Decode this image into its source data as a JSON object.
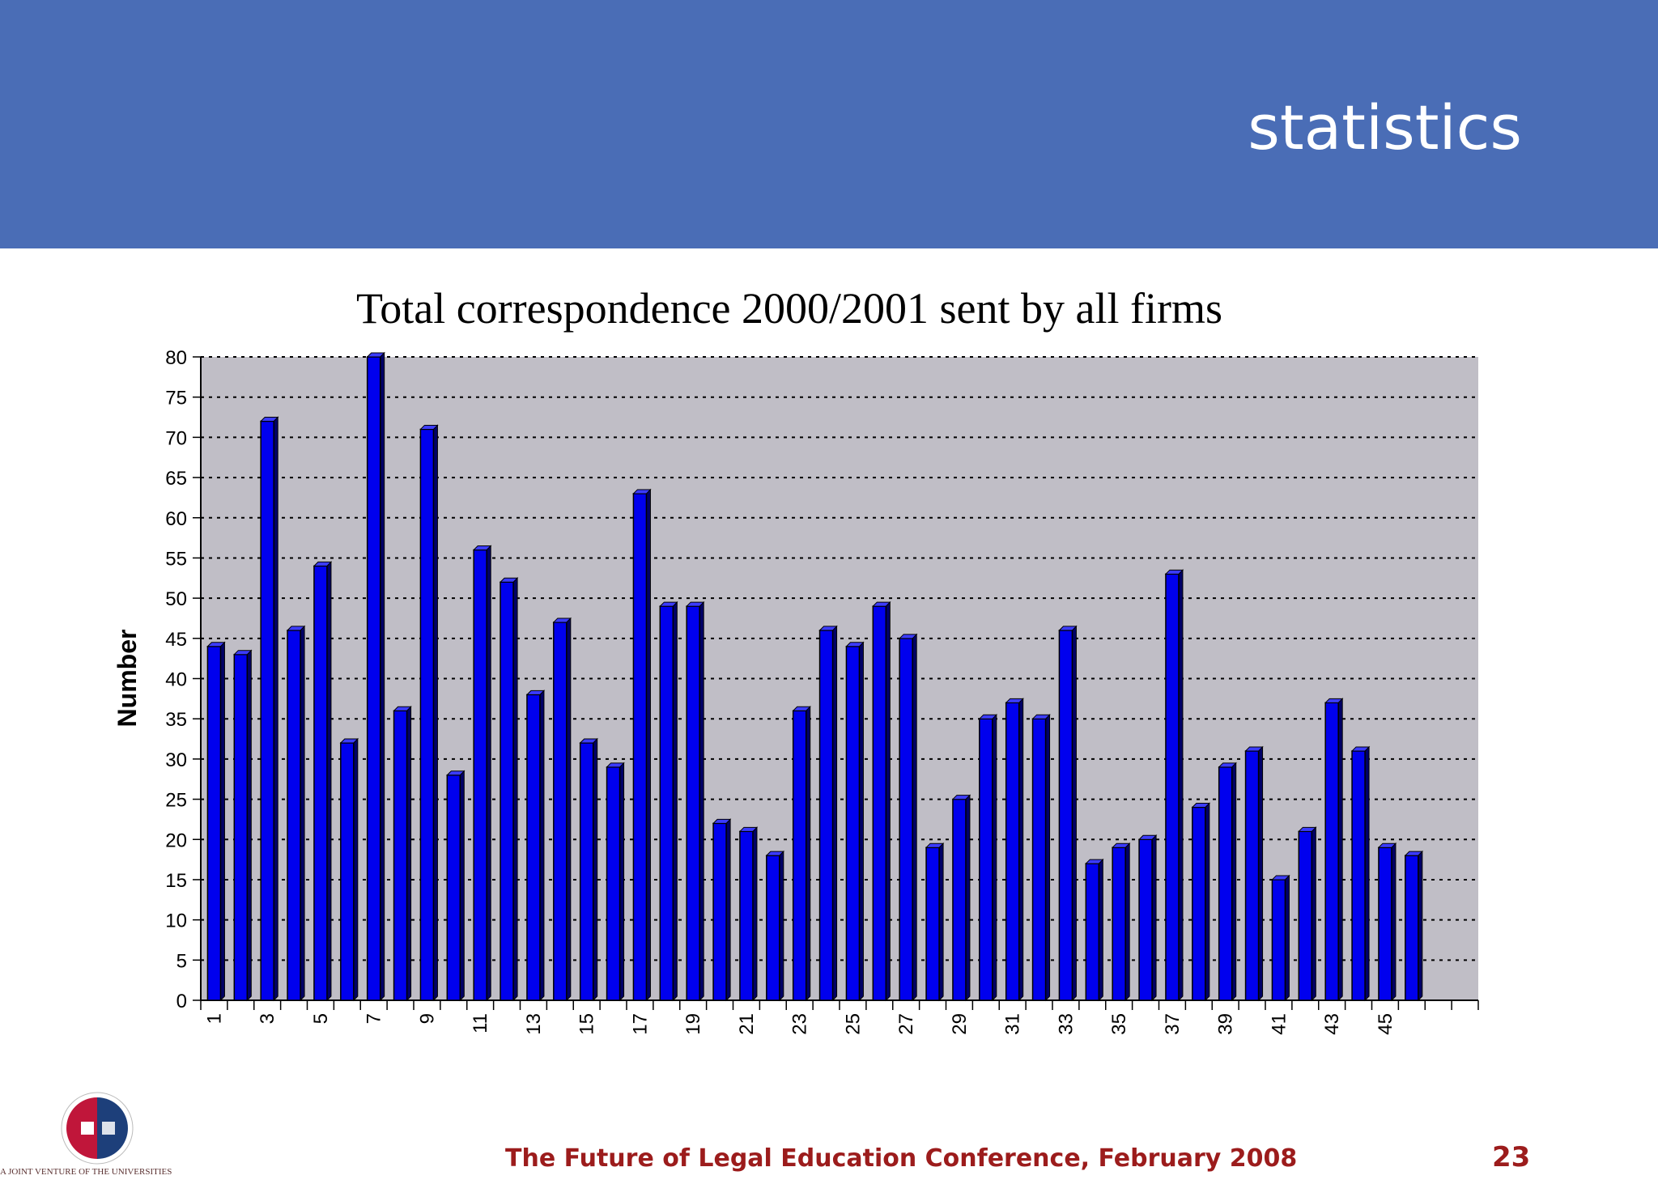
{
  "header": {
    "title": "statistics"
  },
  "footer": {
    "conference": "The Future of Legal Education Conference, February 2008",
    "page_number": "23",
    "logo_caption": "A JOINT VENTURE OF THE UNIVERSITIES",
    "logo_ring_text": "GLASGOW GRADUATE SCHOOL OF LAW"
  },
  "colors": {
    "header_bg": "#4a6db6",
    "bar_fill": "#0000ee",
    "plot_bg": "#c0bec6",
    "footer_text": "#9c1c1c"
  },
  "chart_data": {
    "type": "bar",
    "title": "Total correspondence 2000/2001 sent by all firms",
    "xlabel": "",
    "ylabel": "Number",
    "ylim": [
      0,
      80
    ],
    "yticks": [
      0,
      5,
      10,
      15,
      20,
      25,
      30,
      35,
      40,
      45,
      50,
      55,
      60,
      65,
      70,
      75,
      80
    ],
    "grid": true,
    "categories": [
      1,
      2,
      3,
      4,
      5,
      6,
      7,
      8,
      9,
      10,
      11,
      12,
      13,
      14,
      15,
      16,
      17,
      18,
      19,
      20,
      21,
      22,
      23,
      24,
      25,
      26,
      27,
      28,
      29,
      30,
      31,
      32,
      33,
      34,
      35,
      36,
      37,
      38,
      39,
      40,
      41,
      42,
      43,
      44,
      45,
      46
    ],
    "x_tick_labels": [
      "1",
      "3",
      "5",
      "7",
      "9",
      "11",
      "13",
      "15",
      "17",
      "19",
      "21",
      "23",
      "25",
      "27",
      "29",
      "31",
      "33",
      "35",
      "37",
      "39",
      "41",
      "43",
      "45"
    ],
    "category_slots": 48,
    "values": [
      44,
      43,
      72,
      46,
      54,
      32,
      80,
      36,
      71,
      28,
      56,
      52,
      38,
      47,
      32,
      29,
      63,
      49,
      49,
      22,
      21,
      18,
      36,
      46,
      44,
      49,
      45,
      19,
      25,
      35,
      37,
      35,
      46,
      17,
      19,
      20,
      53,
      24,
      29,
      31,
      15,
      21,
      37,
      31,
      19,
      18
    ]
  }
}
